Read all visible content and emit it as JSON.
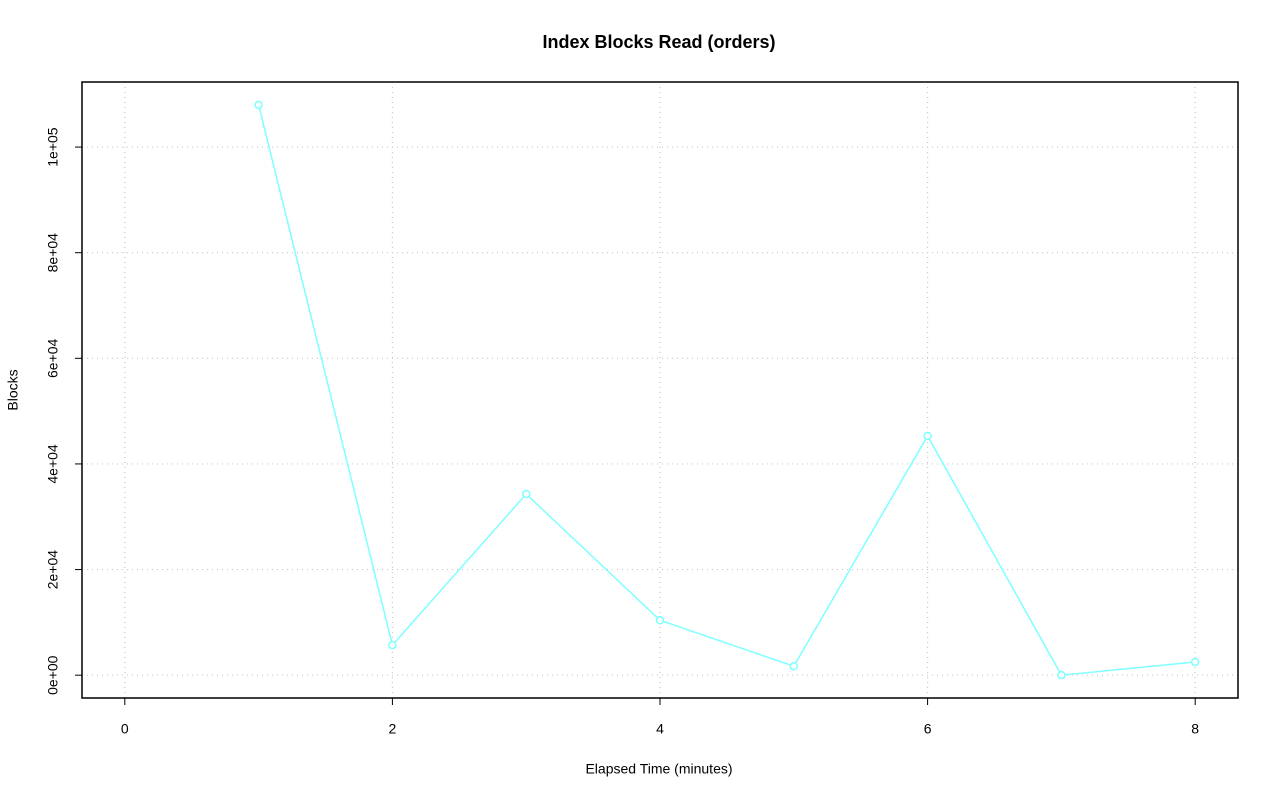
{
  "chart_data": {
    "type": "line",
    "title": "Index Blocks Read (orders)",
    "x_label": "Elapsed Time (minutes)",
    "y_label": "Blocks",
    "x": [
      1,
      2,
      3,
      4,
      5,
      6,
      7,
      8
    ],
    "series": [
      {
        "color": "#7fffff",
        "values": [
          108000,
          5700,
          34300,
          10400,
          1700,
          45300,
          0,
          2500
        ]
      }
    ],
    "xlim": [
      -0.32,
      8.32
    ],
    "xticks": [
      0,
      2,
      4,
      6,
      8
    ],
    "ylim": [
      -4320,
      112320
    ],
    "yticks": [
      {
        "value": 0,
        "label": "0e+00"
      },
      {
        "value": 20000,
        "label": "2e+04"
      },
      {
        "value": 40000,
        "label": "4e+04"
      },
      {
        "value": 60000,
        "label": "6e+04"
      },
      {
        "value": 80000,
        "label": "8e+04"
      },
      {
        "value": 100000,
        "label": "1e+05"
      }
    ],
    "grid": true
  }
}
